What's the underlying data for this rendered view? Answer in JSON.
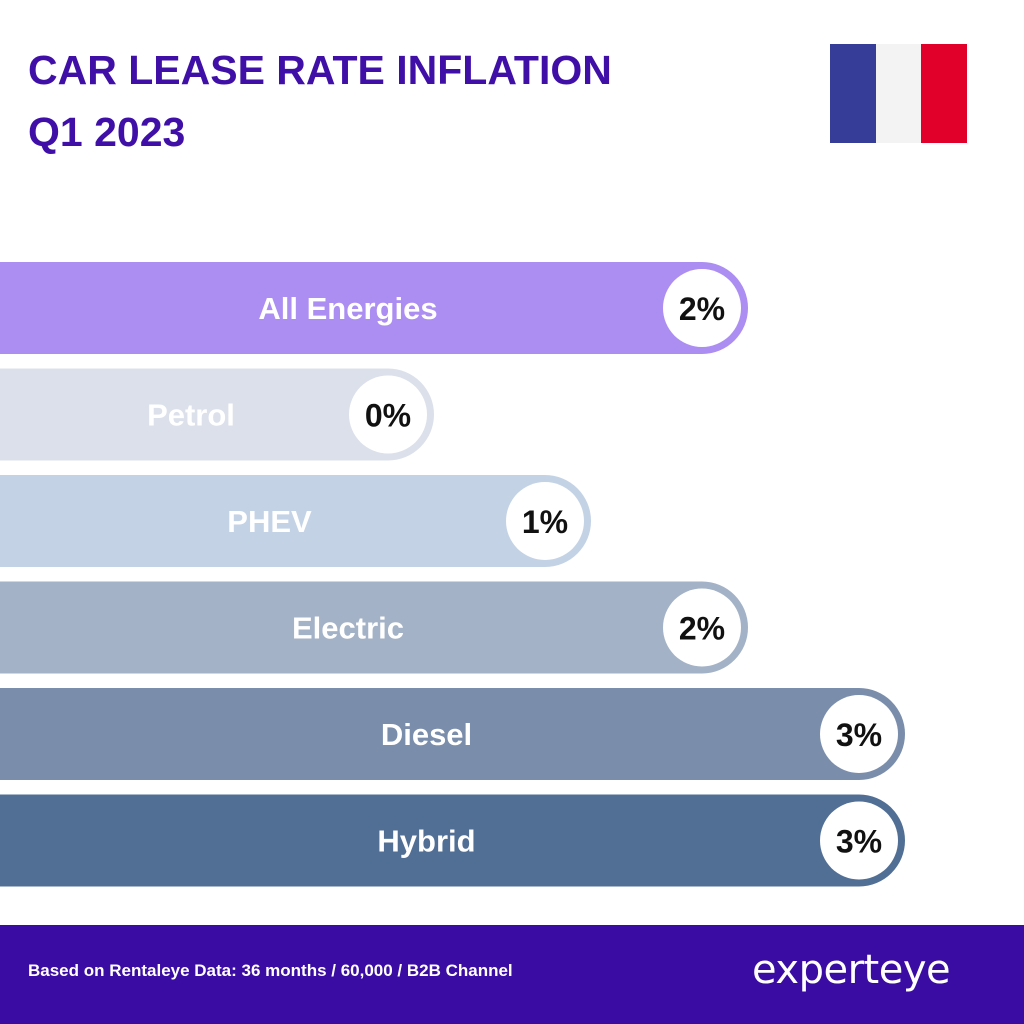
{
  "header": {
    "title_line1": "CAR LEASE RATE INFLATION",
    "title_line2": "Q1 2023",
    "flag_colors": [
      "#353d98",
      "#f3f3f3",
      "#e0002a"
    ]
  },
  "chart_data": {
    "type": "bar",
    "orientation": "horizontal",
    "categories": [
      "All Energies",
      "Petrol",
      "PHEV",
      "Electric",
      "Diesel",
      "Hybrid"
    ],
    "values": [
      2,
      0,
      1,
      2,
      3,
      3
    ],
    "value_labels": [
      "2%",
      "0%",
      "1%",
      "2%",
      "3%",
      "3%"
    ],
    "bar_colors": [
      "#ac8df2",
      "#dbe0ea",
      "#c3d2e5",
      "#a3b2c6",
      "#7a8dab",
      "#516f95"
    ],
    "grid": false,
    "legend": "none"
  },
  "footer": {
    "note": "Based on Rentaleye Data: 36 months / 60,000 / B2B Channel",
    "logo_text": "experteye",
    "background": "#3a0ca3"
  }
}
